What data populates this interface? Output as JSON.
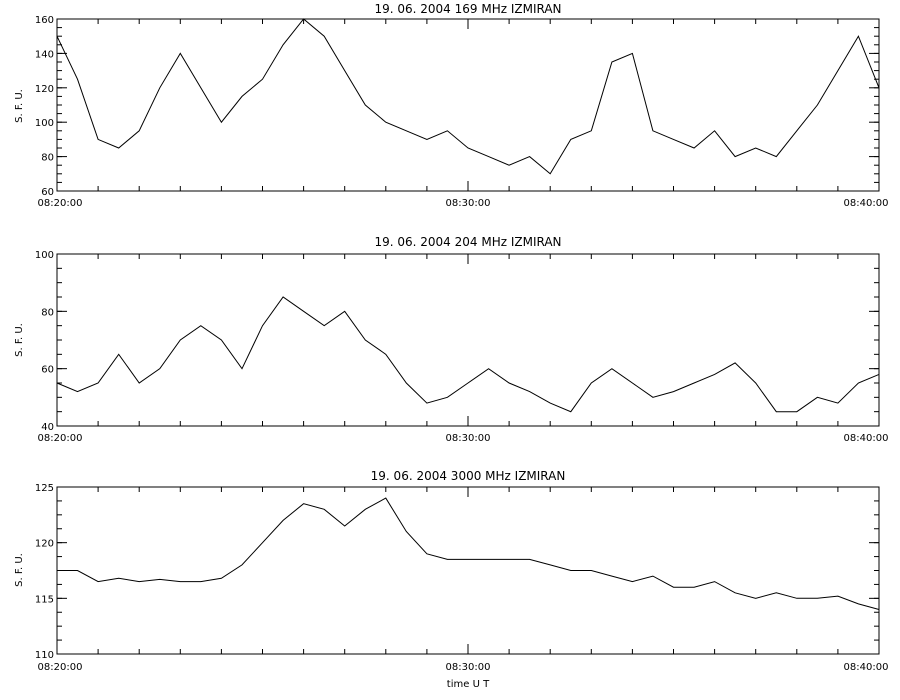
{
  "chart_data": [
    {
      "type": "line",
      "title": "19.  06.  2004    169 MHz    IZMIRAN",
      "xlabel": "",
      "ylabel": "S. F. U.",
      "xlim": [
        "08:20:00",
        "08:40:00"
      ],
      "ylim": [
        60,
        160
      ],
      "x_tick_labels": [
        "08:20:00",
        "08:30:00",
        "08:40:00"
      ],
      "y_ticks": [
        60,
        80,
        100,
        120,
        140,
        160
      ],
      "grid": false,
      "series": [
        {
          "x": [
            "08:20:00",
            "08:20:30",
            "08:21:00",
            "08:21:30",
            "08:22:00",
            "08:22:30",
            "08:23:00",
            "08:23:30",
            "08:24:00",
            "08:24:30",
            "08:25:00",
            "08:25:30",
            "08:26:00",
            "08:26:30",
            "08:27:00",
            "08:27:30",
            "08:28:00",
            "08:28:30",
            "08:29:00",
            "08:29:30",
            "08:30:00",
            "08:30:30",
            "08:31:00",
            "08:31:30",
            "08:32:00",
            "08:32:30",
            "08:33:00",
            "08:33:30",
            "08:34:00",
            "08:34:30",
            "08:35:00",
            "08:35:30",
            "08:36:00",
            "08:36:30",
            "08:37:00",
            "08:37:30",
            "08:38:00",
            "08:38:30",
            "08:39:00",
            "08:39:30",
            "08:40:00"
          ],
          "values": [
            150,
            125,
            90,
            85,
            95,
            120,
            140,
            120,
            100,
            115,
            125,
            145,
            160,
            150,
            130,
            110,
            100,
            95,
            90,
            95,
            85,
            80,
            75,
            80,
            70,
            90,
            95,
            135,
            140,
            95,
            90,
            85,
            95,
            80,
            85,
            80,
            95,
            110,
            130,
            150,
            120
          ]
        }
      ]
    },
    {
      "type": "line",
      "title": "19.  06.  2004    204 MHz    IZMIRAN",
      "xlabel": "",
      "ylabel": "S. F. U.",
      "xlim": [
        "08:20:00",
        "08:40:00"
      ],
      "ylim": [
        40,
        100
      ],
      "x_tick_labels": [
        "08:20:00",
        "08:30:00",
        "08:40:00"
      ],
      "y_ticks": [
        40,
        60,
        80,
        100
      ],
      "grid": false,
      "series": [
        {
          "x": [
            "08:20:00",
            "08:20:30",
            "08:21:00",
            "08:21:30",
            "08:22:00",
            "08:22:30",
            "08:23:00",
            "08:23:30",
            "08:24:00",
            "08:24:30",
            "08:25:00",
            "08:25:30",
            "08:26:00",
            "08:26:30",
            "08:27:00",
            "08:27:30",
            "08:28:00",
            "08:28:30",
            "08:29:00",
            "08:29:30",
            "08:30:00",
            "08:30:30",
            "08:31:00",
            "08:31:30",
            "08:32:00",
            "08:32:30",
            "08:33:00",
            "08:33:30",
            "08:34:00",
            "08:34:30",
            "08:35:00",
            "08:35:30",
            "08:36:00",
            "08:36:30",
            "08:37:00",
            "08:37:30",
            "08:38:00",
            "08:38:30",
            "08:39:00",
            "08:39:30",
            "08:40:00"
          ],
          "values": [
            55,
            52,
            55,
            65,
            55,
            60,
            70,
            75,
            70,
            60,
            75,
            85,
            80,
            75,
            80,
            70,
            65,
            55,
            48,
            50,
            55,
            60,
            55,
            52,
            48,
            45,
            55,
            60,
            55,
            50,
            52,
            55,
            58,
            62,
            55,
            45,
            45,
            50,
            48,
            55,
            58
          ]
        }
      ]
    },
    {
      "type": "line",
      "title": "19.  06.  2004    3000 MHz    IZMIRAN",
      "xlabel": "time  U T",
      "ylabel": "S. F. U.",
      "xlim": [
        "08:20:00",
        "08:40:00"
      ],
      "ylim": [
        110,
        125
      ],
      "x_tick_labels": [
        "08:20:00",
        "08:30:00",
        "08:40:00"
      ],
      "y_ticks": [
        110,
        115,
        120,
        125
      ],
      "grid": false,
      "series": [
        {
          "x": [
            "08:20:00",
            "08:20:30",
            "08:21:00",
            "08:21:30",
            "08:22:00",
            "08:22:30",
            "08:23:00",
            "08:23:30",
            "08:24:00",
            "08:24:30",
            "08:25:00",
            "08:25:30",
            "08:26:00",
            "08:26:30",
            "08:27:00",
            "08:27:30",
            "08:28:00",
            "08:28:30",
            "08:29:00",
            "08:29:30",
            "08:30:00",
            "08:30:30",
            "08:31:00",
            "08:31:30",
            "08:32:00",
            "08:32:30",
            "08:33:00",
            "08:33:30",
            "08:34:00",
            "08:34:30",
            "08:35:00",
            "08:35:30",
            "08:36:00",
            "08:36:30",
            "08:37:00",
            "08:37:30",
            "08:38:00",
            "08:38:30",
            "08:39:00",
            "08:39:30",
            "08:40:00"
          ],
          "values": [
            117.5,
            117.5,
            116.5,
            116.8,
            116.5,
            116.7,
            116.5,
            116.5,
            116.8,
            118,
            120,
            122,
            123.5,
            123,
            121.5,
            123,
            124,
            121,
            119,
            118.5,
            118.5,
            118.5,
            118.5,
            118.5,
            118,
            117.5,
            117.5,
            117,
            116.5,
            117,
            116,
            116,
            116.5,
            115.5,
            115,
            115.5,
            115,
            115,
            115.2,
            114.5,
            114
          ]
        }
      ]
    }
  ]
}
